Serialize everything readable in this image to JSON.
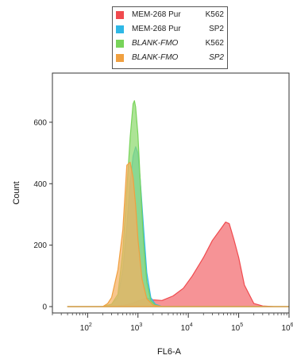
{
  "chart_data": {
    "type": "area",
    "xlabel": "FL6-A",
    "ylabel": "Count",
    "x_scale": "log",
    "xlim": [
      20,
      1000000
    ],
    "ylim": [
      0,
      760
    ],
    "y_ticks": [
      0,
      200,
      400,
      600
    ],
    "x_ticks": [
      {
        "value": 100,
        "base": "10",
        "exp": "2"
      },
      {
        "value": 1000,
        "base": "10",
        "exp": "3"
      },
      {
        "value": 10000,
        "base": "10",
        "exp": "4"
      },
      {
        "value": 100000,
        "base": "10",
        "exp": "5"
      },
      {
        "value": 1000000,
        "base": "10",
        "exp": "6"
      }
    ],
    "legend_position": "top",
    "series": [
      {
        "name": "MEM-268  Pur",
        "sample": "K562",
        "italic": false,
        "color": "#f04a4e",
        "fill": "#f26a6e",
        "x": [
          40,
          200,
          400,
          700,
          1000,
          1500,
          2000,
          3000,
          5000,
          8000,
          12000,
          20000,
          30000,
          45000,
          55000,
          65000,
          80000,
          100000,
          130000,
          200000,
          300000,
          500000,
          1000000
        ],
        "y": [
          0,
          0,
          2,
          8,
          18,
          28,
          22,
          20,
          35,
          60,
          100,
          160,
          215,
          255,
          275,
          270,
          220,
          160,
          70,
          10,
          2,
          0,
          0
        ]
      },
      {
        "name": "MEM-268  Pur",
        "sample": "SP2",
        "italic": false,
        "color": "#2fb8e6",
        "fill": "#4fc4ec",
        "x": [
          40,
          200,
          300,
          400,
          500,
          600,
          700,
          800,
          900,
          1000,
          1100,
          1300,
          1500,
          1800,
          2200,
          3000,
          1000000
        ],
        "y": [
          0,
          0,
          8,
          30,
          120,
          260,
          400,
          490,
          520,
          500,
          420,
          250,
          110,
          30,
          8,
          0,
          0
        ]
      },
      {
        "name": "BLANK-FMO",
        "sample": "K562",
        "italic": true,
        "color": "#78d45a",
        "fill": "#8ed96e",
        "x": [
          40,
          200,
          300,
          400,
          500,
          600,
          700,
          800,
          850,
          900,
          1000,
          1100,
          1300,
          1500,
          1800,
          2200,
          3000,
          1000000
        ],
        "y": [
          0,
          0,
          8,
          40,
          180,
          380,
          550,
          660,
          670,
          650,
          560,
          420,
          200,
          80,
          20,
          5,
          0,
          0
        ]
      },
      {
        "name": "BLANK-FMO",
        "sample": "SP2",
        "italic": true,
        "color": "#f0a040",
        "fill": "#f5b060",
        "x": [
          40,
          200,
          250,
          300,
          400,
          500,
          600,
          700,
          800,
          900,
          1000,
          1200,
          1500,
          2000,
          3000,
          1000000
        ],
        "y": [
          0,
          0,
          10,
          30,
          120,
          250,
          460,
          470,
          420,
          330,
          220,
          90,
          25,
          5,
          0,
          0
        ]
      }
    ]
  }
}
